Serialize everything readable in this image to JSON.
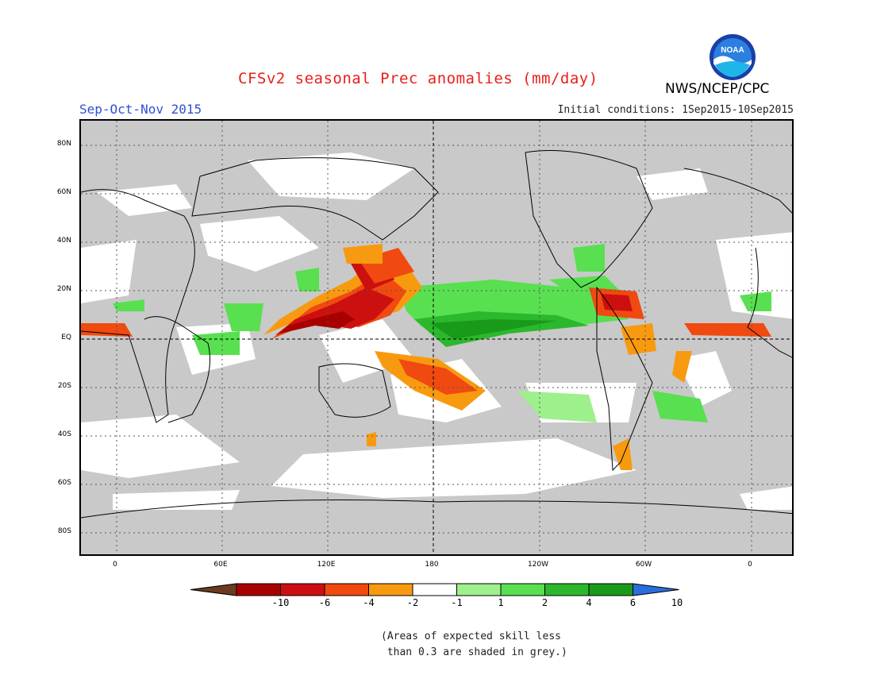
{
  "header": {
    "title": "CFSv2 seasonal Prec anomalies (mm/day)",
    "season": "Sep-Oct-Nov 2015",
    "initial_conditions": "Initial conditions: 1Sep2015-10Sep2015",
    "agency": "NWS/NCEP/CPC",
    "logo_text": "NOAA"
  },
  "map": {
    "lat_labels": [
      "80N",
      "60N",
      "40N",
      "20N",
      "EQ",
      "20S",
      "40S",
      "60S",
      "80S"
    ],
    "lon_labels": [
      "0",
      "60E",
      "120E",
      "180",
      "120W",
      "60W",
      "0"
    ]
  },
  "colorbar": {
    "labels": [
      "-10",
      "-6",
      "-4",
      "-2",
      "-1",
      "1",
      "2",
      "4",
      "6",
      "10"
    ],
    "colors": [
      "#6b3b1f",
      "#a80000",
      "#cc1010",
      "#f04a10",
      "#f89a10",
      "#ffffff",
      "#9ef08c",
      "#58e050",
      "#2cb82c",
      "#1a9a1a",
      "#2a6edc"
    ]
  },
  "footnote": "(Areas of expected skill less\n than 0.3 are shaded in grey.)"
}
